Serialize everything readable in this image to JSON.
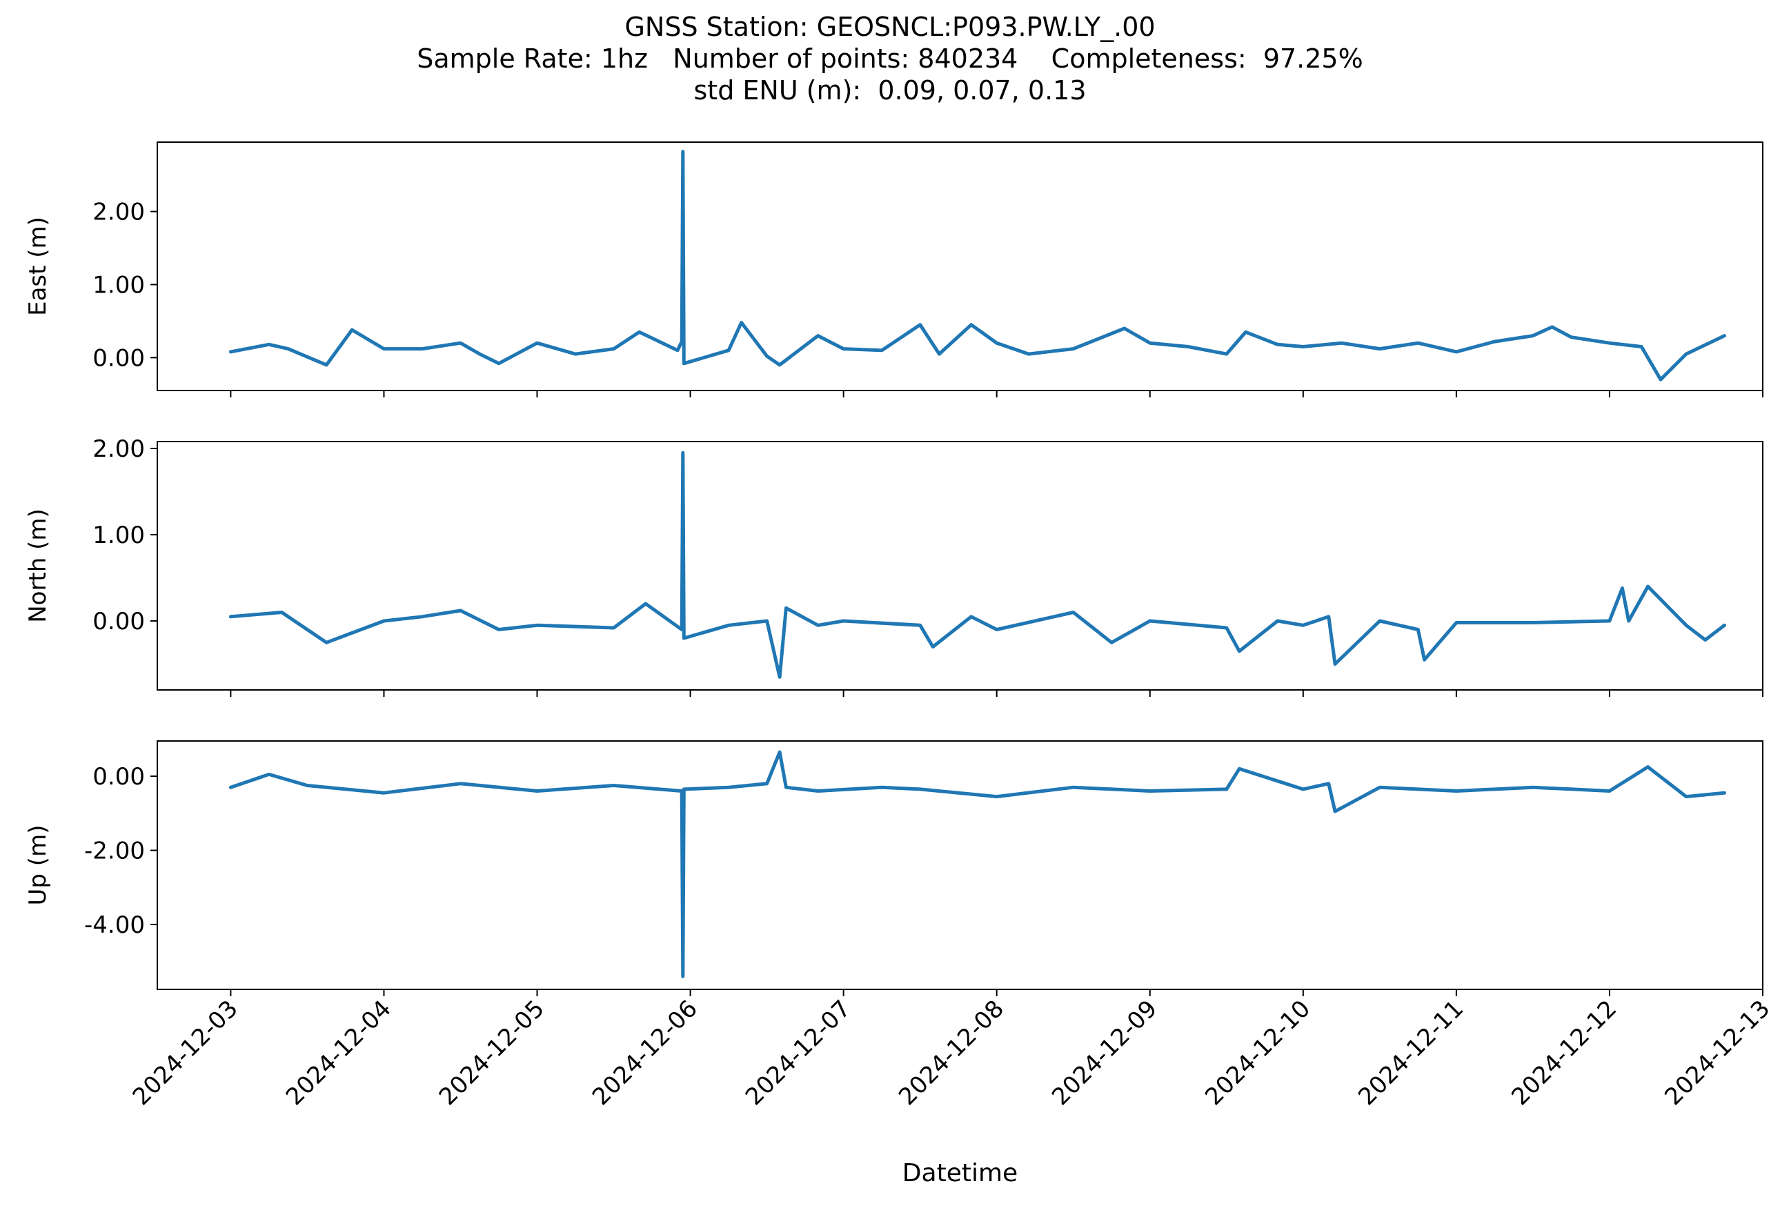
{
  "title": {
    "line1": "GNSS Station: GEOSNCL:P093.PW.LY_.00",
    "line2": "Sample Rate: 1hz   Number of points: 840234    Completeness:  97.25%",
    "line3": "std ENU (m):  0.09, 0.07, 0.13"
  },
  "chart_data": {
    "type": "line",
    "xlabel": "Datetime",
    "x_range": [
      "2024-12-02T12:30",
      "2024-12-13T00:00"
    ],
    "x_ticks": [
      "2024-12-03",
      "2024-12-04",
      "2024-12-05",
      "2024-12-06",
      "2024-12-07",
      "2024-12-08",
      "2024-12-09",
      "2024-12-10",
      "2024-12-11",
      "2024-12-12",
      "2024-12-13"
    ],
    "line_color": "#1f77b4",
    "grid": false,
    "panels": [
      {
        "ylabel": "East (m)",
        "ylim": [
          -0.45,
          2.95
        ],
        "yticks": [
          0.0,
          1.0,
          2.0
        ],
        "ytick_labels": [
          "0.00",
          "1.00",
          "2.00"
        ],
        "x": [
          "2024-12-03T00:00",
          "2024-12-03T06:00",
          "2024-12-03T09:00",
          "2024-12-03T15:00",
          "2024-12-03T19:00",
          "2024-12-04T00:00",
          "2024-12-04T06:00",
          "2024-12-04T12:00",
          "2024-12-04T15:00",
          "2024-12-04T18:00",
          "2024-12-05T00:00",
          "2024-12-05T06:00",
          "2024-12-05T12:00",
          "2024-12-05T16:00",
          "2024-12-05T22:00",
          "2024-12-05T22:40",
          "2024-12-05T22:50",
          "2024-12-05T23:00",
          "2024-12-06T06:00",
          "2024-12-06T08:00",
          "2024-12-06T12:00",
          "2024-12-06T14:00",
          "2024-12-06T20:00",
          "2024-12-07T00:00",
          "2024-12-07T06:00",
          "2024-12-07T12:00",
          "2024-12-07T15:00",
          "2024-12-07T20:00",
          "2024-12-08T00:00",
          "2024-12-08T05:00",
          "2024-12-08T12:00",
          "2024-12-08T20:00",
          "2024-12-09T00:00",
          "2024-12-09T06:00",
          "2024-12-09T12:00",
          "2024-12-09T15:00",
          "2024-12-09T20:00",
          "2024-12-10T00:00",
          "2024-12-10T06:00",
          "2024-12-10T12:00",
          "2024-12-10T18:00",
          "2024-12-11T00:00",
          "2024-12-11T06:00",
          "2024-12-11T12:00",
          "2024-12-11T15:00",
          "2024-12-11T18:00",
          "2024-12-12T00:00",
          "2024-12-12T05:00",
          "2024-12-12T08:00",
          "2024-12-12T12:00",
          "2024-12-12T18:00"
        ],
        "values": [
          0.08,
          0.18,
          0.12,
          -0.1,
          0.38,
          0.12,
          0.12,
          0.2,
          0.05,
          -0.08,
          0.2,
          0.05,
          0.12,
          0.35,
          0.1,
          0.22,
          2.82,
          -0.08,
          0.1,
          0.48,
          0.02,
          -0.1,
          0.3,
          0.12,
          0.1,
          0.45,
          0.05,
          0.45,
          0.2,
          0.05,
          0.12,
          0.4,
          0.2,
          0.15,
          0.05,
          0.35,
          0.18,
          0.15,
          0.2,
          0.12,
          0.2,
          0.08,
          0.22,
          0.3,
          0.42,
          0.28,
          0.2,
          0.15,
          -0.3,
          0.05,
          0.3
        ]
      },
      {
        "ylabel": "North (m)",
        "ylim": [
          -0.8,
          2.08
        ],
        "yticks": [
          0.0,
          1.0,
          2.0
        ],
        "ytick_labels": [
          "0.00",
          "1.00",
          "2.00"
        ],
        "x": [
          "2024-12-03T00:00",
          "2024-12-03T08:00",
          "2024-12-03T15:00",
          "2024-12-04T00:00",
          "2024-12-04T06:00",
          "2024-12-04T12:00",
          "2024-12-04T18:00",
          "2024-12-05T00:00",
          "2024-12-05T12:00",
          "2024-12-05T17:00",
          "2024-12-05T22:40",
          "2024-12-05T22:50",
          "2024-12-05T23:00",
          "2024-12-06T06:00",
          "2024-12-06T12:00",
          "2024-12-06T14:00",
          "2024-12-06T15:00",
          "2024-12-06T20:00",
          "2024-12-07T00:00",
          "2024-12-07T12:00",
          "2024-12-07T14:00",
          "2024-12-07T20:00",
          "2024-12-08T00:00",
          "2024-12-08T12:00",
          "2024-12-08T18:00",
          "2024-12-09T00:00",
          "2024-12-09T12:00",
          "2024-12-09T14:00",
          "2024-12-09T20:00",
          "2024-12-10T00:00",
          "2024-12-10T04:00",
          "2024-12-10T05:00",
          "2024-12-10T12:00",
          "2024-12-10T18:00",
          "2024-12-10T19:00",
          "2024-12-11T00:00",
          "2024-12-11T12:00",
          "2024-12-12T00:00",
          "2024-12-12T02:00",
          "2024-12-12T03:00",
          "2024-12-12T06:00",
          "2024-12-12T12:00",
          "2024-12-12T15:00",
          "2024-12-12T18:00"
        ],
        "values": [
          0.05,
          0.1,
          -0.25,
          0.0,
          0.05,
          0.12,
          -0.1,
          -0.05,
          -0.08,
          0.2,
          -0.1,
          1.95,
          -0.2,
          -0.05,
          0.0,
          -0.65,
          0.15,
          -0.05,
          0.0,
          -0.05,
          -0.3,
          0.05,
          -0.1,
          0.1,
          -0.25,
          0.0,
          -0.08,
          -0.35,
          0.0,
          -0.05,
          0.05,
          -0.5,
          0.0,
          -0.1,
          -0.45,
          -0.02,
          -0.02,
          0.0,
          0.38,
          0.0,
          0.4,
          -0.05,
          -0.22,
          -0.05
        ]
      },
      {
        "ylabel": "Up (m)",
        "ylim": [
          -5.75,
          0.95
        ],
        "yticks": [
          -4.0,
          -2.0,
          0.0
        ],
        "ytick_labels": [
          "-4.00",
          "-2.00",
          "0.00"
        ],
        "x": [
          "2024-12-03T00:00",
          "2024-12-03T06:00",
          "2024-12-03T12:00",
          "2024-12-04T00:00",
          "2024-12-04T12:00",
          "2024-12-05T00:00",
          "2024-12-05T12:00",
          "2024-12-05T22:40",
          "2024-12-05T22:50",
          "2024-12-05T23:00",
          "2024-12-06T06:00",
          "2024-12-06T12:00",
          "2024-12-06T14:00",
          "2024-12-06T15:00",
          "2024-12-06T20:00",
          "2024-12-07T06:00",
          "2024-12-07T12:00",
          "2024-12-08T00:00",
          "2024-12-08T12:00",
          "2024-12-09T00:00",
          "2024-12-09T12:00",
          "2024-12-09T14:00",
          "2024-12-10T00:00",
          "2024-12-10T04:00",
          "2024-12-10T05:00",
          "2024-12-10T12:00",
          "2024-12-11T00:00",
          "2024-12-11T12:00",
          "2024-12-12T00:00",
          "2024-12-12T06:00",
          "2024-12-12T12:00",
          "2024-12-12T18:00"
        ],
        "values": [
          -0.3,
          0.05,
          -0.25,
          -0.45,
          -0.2,
          -0.4,
          -0.25,
          -0.4,
          -5.4,
          -0.35,
          -0.3,
          -0.2,
          0.65,
          -0.3,
          -0.4,
          -0.3,
          -0.35,
          -0.55,
          -0.3,
          -0.4,
          -0.35,
          0.2,
          -0.35,
          -0.2,
          -0.95,
          -0.3,
          -0.4,
          -0.3,
          -0.4,
          0.25,
          -0.55,
          -0.45
        ]
      }
    ]
  }
}
